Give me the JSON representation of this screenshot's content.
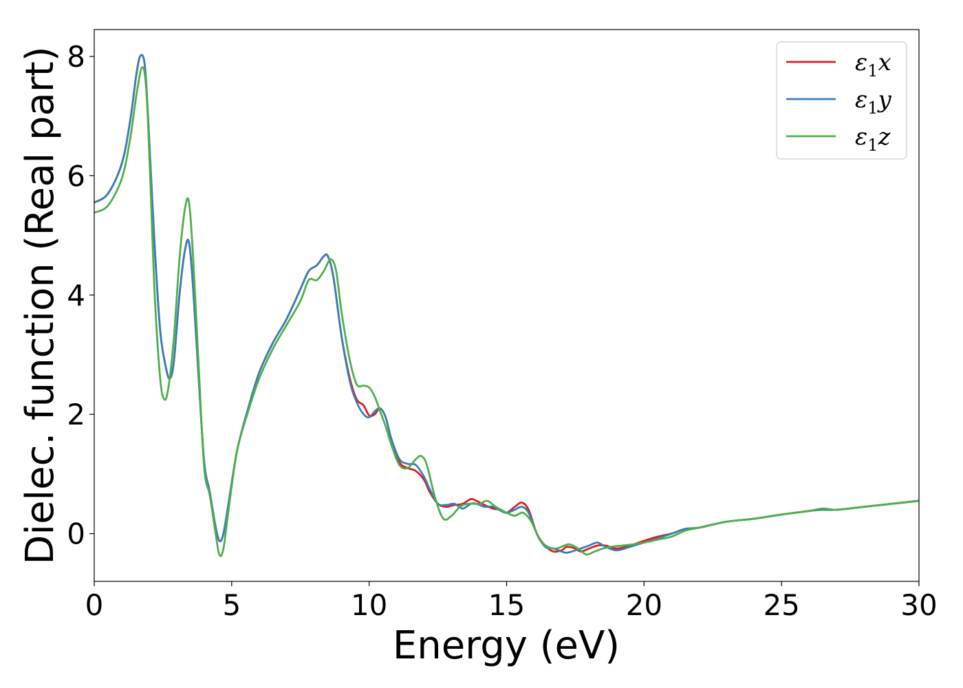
{
  "chart_data": {
    "type": "line",
    "title": "",
    "xlabel": "Energy (eV)",
    "ylabel": "Dielec. function (Real part)",
    "xlim": [
      0,
      30
    ],
    "ylim": [
      -0.8,
      8.45
    ],
    "xticks": [
      0,
      5,
      10,
      15,
      20,
      25,
      30
    ],
    "yticks": [
      0,
      2,
      4,
      6,
      8
    ],
    "grid": false,
    "legend_position": "top-right",
    "series": [
      {
        "name": "ε₁x",
        "legend_base": "ε",
        "legend_sub": "1",
        "legend_suffix": "x",
        "color": "#e41a1c",
        "x": [
          0,
          0.5,
          1.0,
          1.3,
          1.55,
          1.7,
          1.85,
          2.0,
          2.2,
          2.4,
          2.6,
          2.75,
          2.9,
          3.1,
          3.3,
          3.45,
          3.6,
          3.8,
          4.0,
          4.2,
          4.4,
          4.55,
          4.7,
          4.9,
          5.2,
          5.6,
          6.0,
          6.5,
          7.0,
          7.5,
          7.8,
          8.1,
          8.35,
          8.5,
          8.7,
          9.0,
          9.3,
          9.55,
          9.8,
          10.0,
          10.2,
          10.4,
          10.6,
          10.8,
          11.1,
          11.4,
          11.7,
          12.0,
          12.2,
          12.5,
          12.8,
          13.1,
          13.4,
          13.7,
          13.9,
          14.2,
          14.5,
          14.8,
          15.0,
          15.3,
          15.55,
          15.8,
          16.1,
          16.4,
          16.7,
          17.0,
          17.2,
          17.5,
          17.7,
          18.0,
          18.3,
          18.6,
          19.0,
          19.5,
          20.0,
          20.5,
          21.0,
          21.5,
          22.0,
          23.0,
          24.0,
          25.0,
          26.0,
          26.5,
          27.0,
          28.0,
          29.0,
          30.0
        ],
        "y": [
          5.55,
          5.7,
          6.2,
          6.9,
          7.75,
          8.02,
          7.8,
          6.6,
          4.8,
          3.4,
          2.8,
          2.6,
          2.9,
          4.0,
          4.75,
          4.88,
          4.1,
          2.6,
          1.2,
          0.7,
          0.15,
          -0.12,
          0.0,
          0.55,
          1.4,
          2.1,
          2.7,
          3.2,
          3.6,
          4.1,
          4.4,
          4.5,
          4.65,
          4.65,
          4.3,
          3.3,
          2.6,
          2.25,
          2.15,
          1.98,
          2.0,
          2.1,
          1.95,
          1.6,
          1.2,
          1.1,
          1.05,
          0.9,
          0.7,
          0.5,
          0.45,
          0.48,
          0.5,
          0.58,
          0.55,
          0.48,
          0.42,
          0.4,
          0.35,
          0.45,
          0.52,
          0.4,
          0.0,
          -0.2,
          -0.3,
          -0.28,
          -0.22,
          -0.25,
          -0.3,
          -0.25,
          -0.2,
          -0.2,
          -0.25,
          -0.2,
          -0.12,
          -0.05,
          0.0,
          0.08,
          0.1,
          0.2,
          0.25,
          0.32,
          0.38,
          0.42,
          0.4,
          0.45,
          0.5,
          0.55
        ]
      },
      {
        "name": "ε₁y",
        "legend_base": "ε",
        "legend_sub": "1",
        "legend_suffix": "y",
        "color": "#377eb8",
        "x": [
          0,
          0.5,
          1.0,
          1.3,
          1.55,
          1.7,
          1.85,
          2.0,
          2.2,
          2.4,
          2.6,
          2.75,
          2.9,
          3.1,
          3.3,
          3.45,
          3.6,
          3.8,
          4.0,
          4.2,
          4.4,
          4.55,
          4.7,
          4.9,
          5.2,
          5.6,
          6.0,
          6.5,
          7.0,
          7.5,
          7.8,
          8.1,
          8.35,
          8.5,
          8.7,
          9.0,
          9.3,
          9.55,
          9.8,
          10.0,
          10.2,
          10.4,
          10.6,
          10.8,
          11.1,
          11.4,
          11.7,
          12.0,
          12.2,
          12.5,
          12.8,
          13.1,
          13.4,
          13.7,
          13.9,
          14.2,
          14.5,
          14.8,
          15.0,
          15.3,
          15.55,
          15.8,
          16.1,
          16.4,
          16.7,
          17.0,
          17.2,
          17.5,
          17.7,
          18.0,
          18.3,
          18.6,
          19.0,
          19.5,
          20.0,
          20.5,
          21.0,
          21.5,
          22.0,
          23.0,
          24.0,
          25.0,
          26.0,
          26.5,
          27.0,
          28.0,
          29.0,
          30.0
        ],
        "y": [
          5.55,
          5.7,
          6.2,
          6.9,
          7.75,
          8.02,
          7.8,
          6.6,
          4.8,
          3.4,
          2.8,
          2.6,
          2.9,
          4.0,
          4.75,
          4.88,
          4.1,
          2.6,
          1.2,
          0.7,
          0.15,
          -0.12,
          0.0,
          0.55,
          1.4,
          2.1,
          2.7,
          3.2,
          3.6,
          4.1,
          4.4,
          4.5,
          4.65,
          4.65,
          4.3,
          3.3,
          2.55,
          2.2,
          2.0,
          1.95,
          2.05,
          2.1,
          1.95,
          1.6,
          1.25,
          1.17,
          1.15,
          0.95,
          0.75,
          0.5,
          0.48,
          0.5,
          0.42,
          0.5,
          0.5,
          0.45,
          0.45,
          0.38,
          0.35,
          0.4,
          0.45,
          0.35,
          0.0,
          -0.22,
          -0.25,
          -0.3,
          -0.32,
          -0.28,
          -0.25,
          -0.2,
          -0.15,
          -0.22,
          -0.28,
          -0.22,
          -0.15,
          -0.08,
          0.0,
          0.08,
          0.1,
          0.2,
          0.25,
          0.32,
          0.38,
          0.4,
          0.4,
          0.45,
          0.5,
          0.55
        ]
      },
      {
        "name": "ε₁z",
        "legend_base": "ε",
        "legend_sub": "1",
        "legend_suffix": "z",
        "color": "#4daf4a",
        "x": [
          0,
          0.5,
          1.0,
          1.3,
          1.55,
          1.75,
          1.9,
          2.05,
          2.2,
          2.4,
          2.55,
          2.7,
          2.9,
          3.1,
          3.3,
          3.45,
          3.6,
          3.8,
          4.0,
          4.2,
          4.4,
          4.55,
          4.7,
          4.9,
          5.2,
          5.6,
          6.0,
          6.5,
          7.0,
          7.5,
          7.8,
          8.1,
          8.35,
          8.6,
          8.8,
          9.0,
          9.3,
          9.55,
          9.8,
          10.0,
          10.2,
          10.4,
          10.6,
          10.8,
          11.1,
          11.4,
          11.7,
          11.9,
          12.1,
          12.4,
          12.7,
          13.0,
          13.3,
          13.6,
          14.0,
          14.3,
          14.6,
          15.0,
          15.3,
          15.6,
          15.9,
          16.2,
          16.5,
          16.8,
          17.1,
          17.3,
          17.6,
          17.9,
          18.2,
          18.5,
          18.8,
          19.2,
          19.6,
          20.0,
          20.5,
          21.0,
          21.5,
          22.0,
          23.0,
          24.0,
          25.0,
          26.0,
          26.5,
          27.0,
          28.0,
          29.0,
          30.0
        ],
        "y": [
          5.38,
          5.5,
          5.95,
          6.6,
          7.4,
          7.82,
          7.4,
          5.8,
          4.0,
          2.6,
          2.25,
          2.45,
          3.3,
          4.6,
          5.45,
          5.55,
          4.6,
          2.8,
          1.1,
          0.65,
          0.05,
          -0.35,
          -0.25,
          0.45,
          1.4,
          2.05,
          2.6,
          3.1,
          3.5,
          3.9,
          4.25,
          4.25,
          4.4,
          4.6,
          4.4,
          3.7,
          2.9,
          2.5,
          2.48,
          2.45,
          2.3,
          2.05,
          1.8,
          1.5,
          1.15,
          1.1,
          1.25,
          1.3,
          1.15,
          0.6,
          0.25,
          0.3,
          0.45,
          0.5,
          0.5,
          0.55,
          0.45,
          0.35,
          0.3,
          0.35,
          0.2,
          -0.1,
          -0.22,
          -0.25,
          -0.2,
          -0.18,
          -0.25,
          -0.35,
          -0.3,
          -0.25,
          -0.22,
          -0.2,
          -0.18,
          -0.15,
          -0.1,
          -0.05,
          0.05,
          0.1,
          0.2,
          0.25,
          0.32,
          0.38,
          0.42,
          0.4,
          0.45,
          0.5,
          0.55
        ]
      }
    ]
  }
}
